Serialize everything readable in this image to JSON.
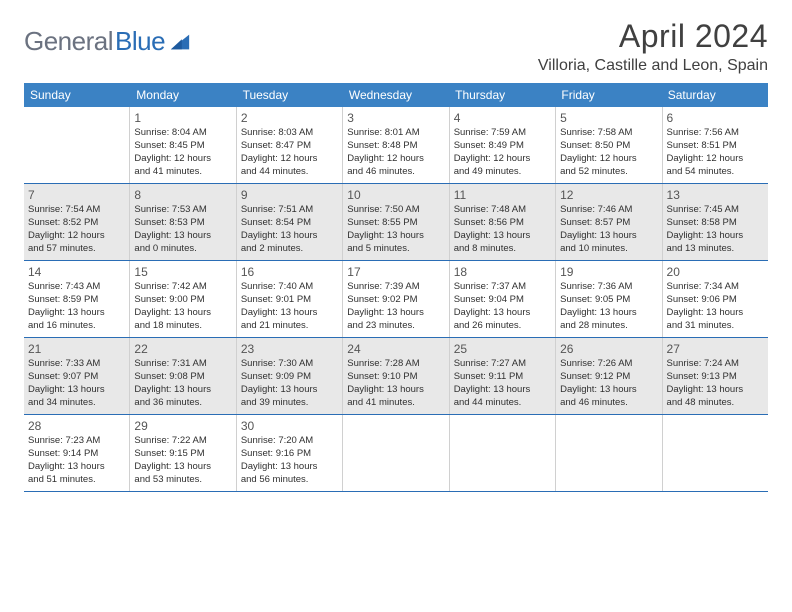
{
  "logo": {
    "part1": "General",
    "part2": "Blue"
  },
  "title": "April 2024",
  "location": "Villoria, Castille and Leon, Spain",
  "colors": {
    "header_bg": "#3b82c4",
    "border": "#2a6db5",
    "shaded": "#e8e8e8",
    "text": "#303030"
  },
  "weekdays": [
    "Sunday",
    "Monday",
    "Tuesday",
    "Wednesday",
    "Thursday",
    "Friday",
    "Saturday"
  ],
  "weeks": [
    [
      null,
      {
        "n": "1",
        "sr": "8:04 AM",
        "ss": "8:45 PM",
        "d1": "12 hours",
        "d2": "41 minutes"
      },
      {
        "n": "2",
        "sr": "8:03 AM",
        "ss": "8:47 PM",
        "d1": "12 hours",
        "d2": "44 minutes"
      },
      {
        "n": "3",
        "sr": "8:01 AM",
        "ss": "8:48 PM",
        "d1": "12 hours",
        "d2": "46 minutes"
      },
      {
        "n": "4",
        "sr": "7:59 AM",
        "ss": "8:49 PM",
        "d1": "12 hours",
        "d2": "49 minutes"
      },
      {
        "n": "5",
        "sr": "7:58 AM",
        "ss": "8:50 PM",
        "d1": "12 hours",
        "d2": "52 minutes"
      },
      {
        "n": "6",
        "sr": "7:56 AM",
        "ss": "8:51 PM",
        "d1": "12 hours",
        "d2": "54 minutes"
      }
    ],
    [
      {
        "n": "7",
        "sr": "7:54 AM",
        "ss": "8:52 PM",
        "d1": "12 hours",
        "d2": "57 minutes",
        "s": true
      },
      {
        "n": "8",
        "sr": "7:53 AM",
        "ss": "8:53 PM",
        "d1": "13 hours",
        "d2": "0 minutes",
        "s": true
      },
      {
        "n": "9",
        "sr": "7:51 AM",
        "ss": "8:54 PM",
        "d1": "13 hours",
        "d2": "2 minutes",
        "s": true
      },
      {
        "n": "10",
        "sr": "7:50 AM",
        "ss": "8:55 PM",
        "d1": "13 hours",
        "d2": "5 minutes",
        "s": true
      },
      {
        "n": "11",
        "sr": "7:48 AM",
        "ss": "8:56 PM",
        "d1": "13 hours",
        "d2": "8 minutes",
        "s": true
      },
      {
        "n": "12",
        "sr": "7:46 AM",
        "ss": "8:57 PM",
        "d1": "13 hours",
        "d2": "10 minutes",
        "s": true
      },
      {
        "n": "13",
        "sr": "7:45 AM",
        "ss": "8:58 PM",
        "d1": "13 hours",
        "d2": "13 minutes",
        "s": true
      }
    ],
    [
      {
        "n": "14",
        "sr": "7:43 AM",
        "ss": "8:59 PM",
        "d1": "13 hours",
        "d2": "16 minutes"
      },
      {
        "n": "15",
        "sr": "7:42 AM",
        "ss": "9:00 PM",
        "d1": "13 hours",
        "d2": "18 minutes"
      },
      {
        "n": "16",
        "sr": "7:40 AM",
        "ss": "9:01 PM",
        "d1": "13 hours",
        "d2": "21 minutes"
      },
      {
        "n": "17",
        "sr": "7:39 AM",
        "ss": "9:02 PM",
        "d1": "13 hours",
        "d2": "23 minutes"
      },
      {
        "n": "18",
        "sr": "7:37 AM",
        "ss": "9:04 PM",
        "d1": "13 hours",
        "d2": "26 minutes"
      },
      {
        "n": "19",
        "sr": "7:36 AM",
        "ss": "9:05 PM",
        "d1": "13 hours",
        "d2": "28 minutes"
      },
      {
        "n": "20",
        "sr": "7:34 AM",
        "ss": "9:06 PM",
        "d1": "13 hours",
        "d2": "31 minutes"
      }
    ],
    [
      {
        "n": "21",
        "sr": "7:33 AM",
        "ss": "9:07 PM",
        "d1": "13 hours",
        "d2": "34 minutes",
        "s": true
      },
      {
        "n": "22",
        "sr": "7:31 AM",
        "ss": "9:08 PM",
        "d1": "13 hours",
        "d2": "36 minutes",
        "s": true
      },
      {
        "n": "23",
        "sr": "7:30 AM",
        "ss": "9:09 PM",
        "d1": "13 hours",
        "d2": "39 minutes",
        "s": true
      },
      {
        "n": "24",
        "sr": "7:28 AM",
        "ss": "9:10 PM",
        "d1": "13 hours",
        "d2": "41 minutes",
        "s": true
      },
      {
        "n": "25",
        "sr": "7:27 AM",
        "ss": "9:11 PM",
        "d1": "13 hours",
        "d2": "44 minutes",
        "s": true
      },
      {
        "n": "26",
        "sr": "7:26 AM",
        "ss": "9:12 PM",
        "d1": "13 hours",
        "d2": "46 minutes",
        "s": true
      },
      {
        "n": "27",
        "sr": "7:24 AM",
        "ss": "9:13 PM",
        "d1": "13 hours",
        "d2": "48 minutes",
        "s": true
      }
    ],
    [
      {
        "n": "28",
        "sr": "7:23 AM",
        "ss": "9:14 PM",
        "d1": "13 hours",
        "d2": "51 minutes"
      },
      {
        "n": "29",
        "sr": "7:22 AM",
        "ss": "9:15 PM",
        "d1": "13 hours",
        "d2": "53 minutes"
      },
      {
        "n": "30",
        "sr": "7:20 AM",
        "ss": "9:16 PM",
        "d1": "13 hours",
        "d2": "56 minutes"
      },
      null,
      null,
      null,
      null
    ]
  ],
  "labels": {
    "sunrise": "Sunrise:",
    "sunset": "Sunset:",
    "daylight": "Daylight:",
    "and": "and"
  }
}
